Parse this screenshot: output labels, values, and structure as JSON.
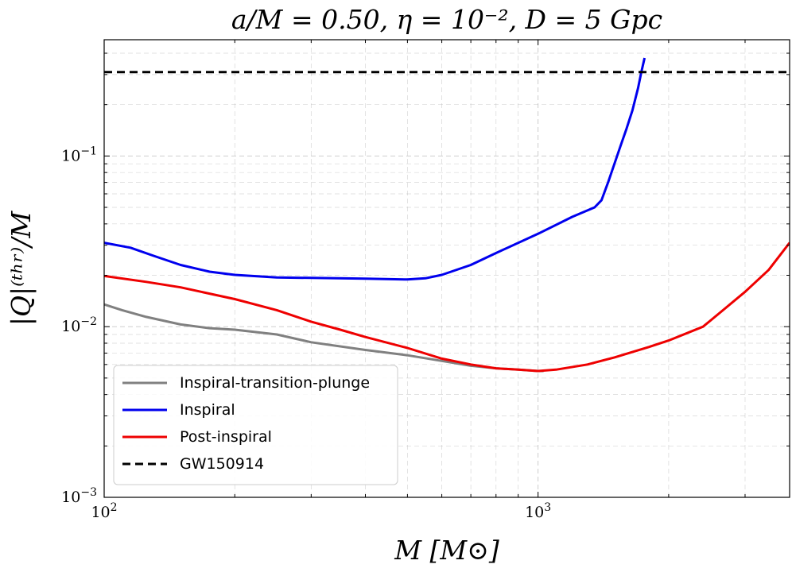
{
  "chart_data": {
    "type": "line",
    "title": "a/M = 0.50, η = 10⁻², D = 5 Gpc",
    "xlabel": "M  [M⊙]",
    "ylabel": "|Q|⁽ᵗʰʳ⁾/M",
    "xscale": "log",
    "yscale": "log",
    "xlim": [
      100,
      3800
    ],
    "ylim": [
      0.001,
      0.48
    ],
    "grid": true,
    "x_ticks": [
      {
        "value": 100,
        "base": "10",
        "exp": "2"
      },
      {
        "value": 1000,
        "base": "10",
        "exp": "3"
      }
    ],
    "y_ticks": [
      {
        "value": 0.001,
        "base": "10",
        "exp": "−3"
      },
      {
        "value": 0.01,
        "base": "10",
        "exp": "−2"
      },
      {
        "value": 0.1,
        "base": "10",
        "exp": "−1"
      }
    ],
    "legend_position": "lower-left",
    "series": [
      {
        "name": "Inspiral-transition-plunge",
        "color": "#808080",
        "style": "solid",
        "x": [
          100,
          110,
          125,
          150,
          175,
          200,
          250,
          300,
          400,
          500,
          600,
          700,
          800,
          900,
          1000,
          1030
        ],
        "y": [
          0.0135,
          0.0125,
          0.0114,
          0.0103,
          0.0098,
          0.0096,
          0.009,
          0.0081,
          0.0073,
          0.0068,
          0.0063,
          0.0059,
          0.0057,
          0.0056,
          0.0055,
          0.0055
        ]
      },
      {
        "name": "Inspiral",
        "color": "#0000ee",
        "style": "solid",
        "x": [
          100,
          115,
          130,
          150,
          175,
          200,
          250,
          300,
          400,
          500,
          550,
          600,
          700,
          800,
          1000,
          1200,
          1350,
          1400,
          1450,
          1500,
          1550,
          1600,
          1650,
          1700,
          1730,
          1760
        ],
        "y": [
          0.031,
          0.029,
          0.026,
          0.023,
          0.021,
          0.0201,
          0.0194,
          0.0193,
          0.0191,
          0.0189,
          0.0192,
          0.0201,
          0.023,
          0.027,
          0.035,
          0.044,
          0.05,
          0.055,
          0.07,
          0.09,
          0.115,
          0.145,
          0.185,
          0.25,
          0.31,
          0.375
        ]
      },
      {
        "name": "Post-inspiral",
        "color": "#ee0000",
        "style": "solid",
        "x": [
          100,
          125,
          150,
          200,
          250,
          300,
          350,
          400,
          500,
          600,
          700,
          800,
          900,
          1000,
          1100,
          1300,
          1500,
          1800,
          2000,
          2400,
          2700,
          3000,
          3400,
          3800
        ],
        "y": [
          0.0198,
          0.0183,
          0.017,
          0.0145,
          0.0125,
          0.0107,
          0.0096,
          0.0087,
          0.0075,
          0.0065,
          0.006,
          0.0057,
          0.0056,
          0.0055,
          0.0056,
          0.006,
          0.0066,
          0.0076,
          0.0083,
          0.01,
          0.0128,
          0.016,
          0.0215,
          0.031
        ]
      },
      {
        "name": "GW150914",
        "color": "#000000",
        "style": "dashed",
        "x": [
          100,
          3800
        ],
        "y": [
          0.31,
          0.31
        ]
      }
    ]
  }
}
